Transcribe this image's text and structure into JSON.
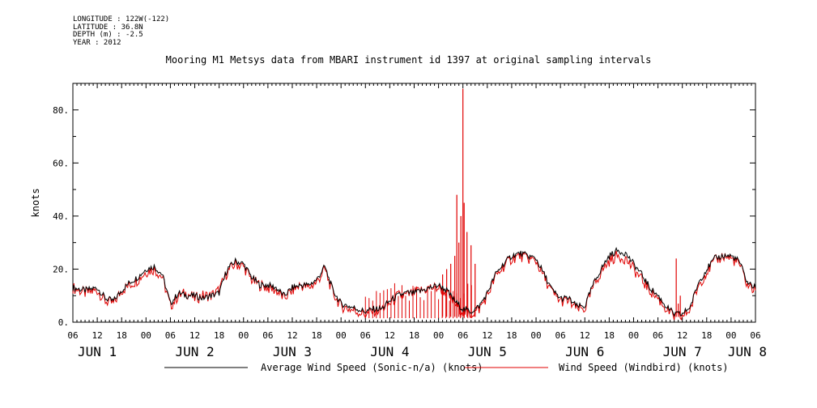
{
  "header": {
    "longitude": "LONGITUDE : 122W(-122)",
    "latitude": "LATITUDE : 36.8N",
    "depth": "DEPTH (m) : -2.5",
    "year": "YEAR : 2012"
  },
  "colors": {
    "average": "#000000",
    "windbird": "#e00000"
  },
  "chart_data": {
    "type": "line",
    "title": "Mooring M1 Metsys data from MBARI instrument id 1397 at original sampling intervals",
    "ylabel": "knots",
    "ylim": [
      0,
      90
    ],
    "yticks": [
      0,
      20,
      40,
      60,
      80
    ],
    "ytick_labels": [
      "0.",
      "20.",
      "40.",
      "60.",
      "80."
    ],
    "x_unit": "hours since 2012-06-01 00:00",
    "xlim": [
      6,
      174
    ],
    "xticks": [
      6,
      12,
      18,
      24,
      30,
      36,
      42,
      48,
      54,
      60,
      66,
      72,
      78,
      84,
      90,
      96,
      102,
      108,
      114,
      120,
      126,
      132,
      138,
      144,
      150,
      156,
      162,
      168,
      174
    ],
    "xtick_labels": [
      "06",
      "12",
      "18",
      "00",
      "06",
      "12",
      "18",
      "00",
      "06",
      "12",
      "18",
      "00",
      "06",
      "12",
      "18",
      "00",
      "06",
      "12",
      "18",
      "00",
      "06",
      "12",
      "18",
      "00",
      "06",
      "12",
      "18",
      "00",
      "06"
    ],
    "day_labels": [
      {
        "x": 12,
        "label": "JUN  1"
      },
      {
        "x": 36,
        "label": "JUN  2"
      },
      {
        "x": 60,
        "label": "JUN  3"
      },
      {
        "x": 84,
        "label": "JUN  4"
      },
      {
        "x": 108,
        "label": "JUN  5"
      },
      {
        "x": 132,
        "label": "JUN  6"
      },
      {
        "x": 156,
        "label": "JUN  7"
      },
      {
        "x": 172,
        "label": "JUN  8"
      }
    ],
    "legend": [
      {
        "name": "Average Wind Speed (Sonic-n/a) (knots)",
        "color": "#000000"
      },
      {
        "name": "Wind Speed (Windbird) (knots)",
        "color": "#e00000"
      }
    ],
    "series": [
      {
        "name": "Average Wind Speed (Sonic-n/a) (knots)",
        "color": "#000000",
        "x": [
          6,
          9,
          12,
          14,
          16,
          18,
          20,
          22,
          24,
          26,
          28,
          30,
          32,
          34,
          36,
          38,
          40,
          42,
          44,
          46,
          48,
          50,
          52,
          54,
          56,
          58,
          60,
          62,
          64,
          66,
          68,
          70,
          72,
          74,
          76,
          78,
          80,
          82,
          84,
          86,
          88,
          90,
          92,
          94,
          96,
          98,
          100,
          102,
          104,
          106,
          108,
          110,
          112,
          114,
          116,
          118,
          120,
          122,
          124,
          126,
          128,
          130,
          132,
          134,
          136,
          138,
          140,
          142,
          144,
          146,
          148,
          150,
          152,
          154,
          156,
          158,
          160,
          162,
          164,
          166,
          168,
          170,
          172,
          174
        ],
        "y": [
          13,
          12,
          13,
          9,
          8,
          12,
          15,
          17,
          20,
          21,
          18,
          7,
          11,
          10,
          10,
          9,
          10,
          11,
          20,
          23,
          22,
          17,
          14,
          14,
          13,
          10,
          13,
          14,
          14,
          16,
          21,
          12,
          7,
          6,
          5,
          4,
          5,
          5,
          8,
          10,
          11,
          11,
          12,
          13,
          14,
          12,
          8,
          5,
          4,
          6,
          11,
          18,
          22,
          25,
          26,
          25,
          24,
          18,
          12,
          9,
          9,
          6,
          6,
          14,
          20,
          25,
          27,
          26,
          22,
          18,
          13,
          10,
          6,
          3,
          3,
          6,
          15,
          20,
          24,
          25,
          25,
          23,
          15,
          13
        ]
      },
      {
        "name": "Wind Speed (Windbird) (knots)",
        "color": "#e00000",
        "x": [
          6,
          9,
          12,
          14,
          16,
          18,
          20,
          22,
          24,
          26,
          28,
          30,
          32,
          34,
          36,
          38,
          40,
          42,
          44,
          46,
          48,
          50,
          52,
          54,
          56,
          58,
          60,
          62,
          64,
          66,
          68,
          70,
          72,
          74,
          76,
          78,
          80,
          82,
          84,
          86,
          88,
          90,
          92,
          94,
          96,
          98,
          100,
          102,
          104,
          106,
          108,
          110,
          112,
          114,
          116,
          118,
          120,
          122,
          124,
          126,
          128,
          130,
          132,
          134,
          136,
          138,
          140,
          142,
          144,
          146,
          148,
          150,
          152,
          154,
          156,
          158,
          160,
          162,
          164,
          166,
          168,
          170,
          172,
          174
        ],
        "y": [
          13,
          11,
          12,
          8,
          7,
          12,
          14,
          16,
          19,
          20,
          17,
          6,
          10,
          11,
          9,
          10,
          10,
          12,
          19,
          22,
          21,
          16,
          14,
          13,
          12,
          9,
          12,
          14,
          13,
          15,
          20,
          11,
          6,
          5,
          4,
          3,
          4,
          5,
          7,
          10,
          10,
          11,
          12,
          13,
          13,
          11,
          7,
          4,
          3,
          5,
          10,
          17,
          21,
          24,
          25,
          24,
          23,
          17,
          11,
          8,
          8,
          5,
          5,
          13,
          19,
          23,
          25,
          24,
          20,
          16,
          12,
          9,
          5,
          2,
          2,
          5,
          14,
          19,
          23,
          25,
          24,
          22,
          14,
          12
        ],
        "spikes": [
          {
            "x": 100.0,
            "y": 25
          },
          {
            "x": 100.5,
            "y": 48
          },
          {
            "x": 101.0,
            "y": 30
          },
          {
            "x": 101.5,
            "y": 40
          },
          {
            "x": 102.0,
            "y": 88
          },
          {
            "x": 102.3,
            "y": 45
          },
          {
            "x": 103.0,
            "y": 34
          },
          {
            "x": 104.0,
            "y": 29
          },
          {
            "x": 105.0,
            "y": 22
          },
          {
            "x": 97.0,
            "y": 18
          },
          {
            "x": 98.0,
            "y": 20
          },
          {
            "x": 99.0,
            "y": 22
          },
          {
            "x": 154.5,
            "y": 24
          },
          {
            "x": 155.0,
            "y": 7
          },
          {
            "x": 155.5,
            "y": 10
          }
        ]
      }
    ]
  }
}
